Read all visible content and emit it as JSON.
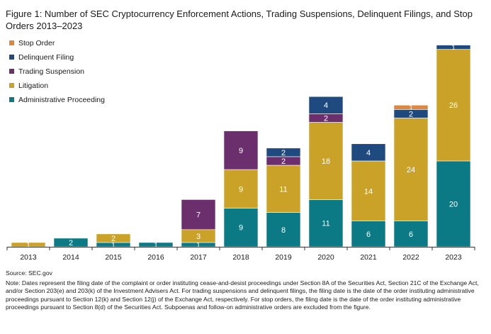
{
  "chart_data": {
    "type": "bar",
    "stacked": true,
    "title": "Figure 1: Number of SEC Cryptocurrency Enforcement Actions, Trading Suspensions, Delinquent Filings, and Stop Orders 2013–2023",
    "xlabel": "",
    "ylabel": "",
    "ylim": [
      0,
      48
    ],
    "grid": false,
    "legend_position": "top-left",
    "categories": [
      "2013",
      "2014",
      "2015",
      "2016",
      "2017",
      "2018",
      "2019",
      "2020",
      "2021",
      "2022",
      "2023"
    ],
    "series": [
      {
        "name": "Administrative Proceeding",
        "color": "#0b7a84",
        "values": [
          0,
          2,
          1,
          1,
          1,
          9,
          8,
          11,
          6,
          6,
          20
        ]
      },
      {
        "name": "Litigation",
        "color": "#c9a227",
        "values": [
          1,
          0,
          2,
          0,
          3,
          9,
          11,
          18,
          14,
          24,
          26
        ]
      },
      {
        "name": "Trading Suspension",
        "color": "#6b2f6e",
        "values": [
          0,
          0,
          0,
          0,
          7,
          9,
          2,
          2,
          0,
          0,
          0
        ]
      },
      {
        "name": "Delinquent Filing",
        "color": "#1f4a7f",
        "values": [
          0,
          0,
          0,
          0,
          0,
          0,
          2,
          4,
          4,
          2,
          1
        ]
      },
      {
        "name": "Stop Order",
        "color": "#e0873a",
        "values": [
          0,
          0,
          0,
          0,
          0,
          0,
          0,
          0,
          0,
          1,
          0
        ]
      }
    ]
  },
  "notes": {
    "source": "Source: SEC.gov",
    "note": "Note: Dates represent the filing date of the complaint or order instituting cease-and-desist proceedings under Section 8A of the Securities Act, Section 21C of the Exchange Act, and/or Section 203(e) and 203(k) of the Investment Advisers Act. For trading suspensions and delinquent filings, the filing date is the date of the order instituting administrative proceedings pursuant to Section 12(k) and Section 12(j) of the Exchange Act, respectively. For stop orders, the filing date is the date of the order instituting administrative proceedings pursuant to Section 8(d) of the Securities Act. Subpoenas and follow-on administrative orders are excluded from the figure."
  }
}
